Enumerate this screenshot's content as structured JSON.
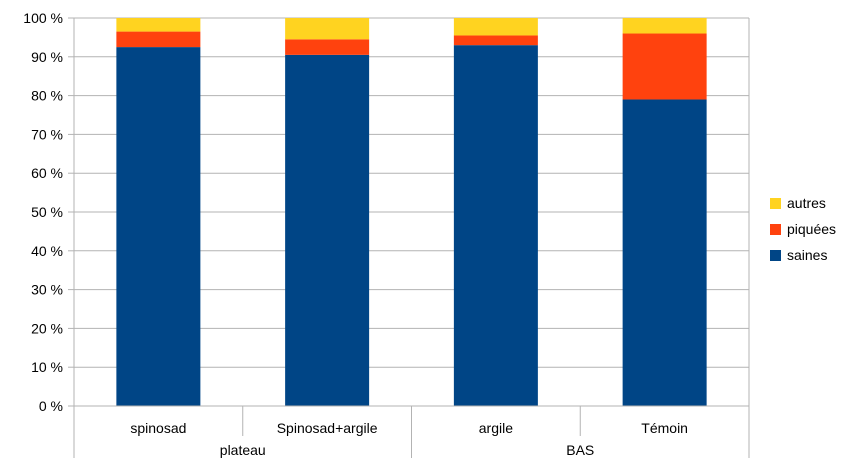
{
  "chart_data": {
    "type": "bar",
    "stacked": true,
    "percent": true,
    "title": "",
    "xlabel": "",
    "ylabel": "",
    "ylim": [
      0,
      100
    ],
    "yticks": [
      "0 %",
      "10 %",
      "20 %",
      "30 %",
      "40 %",
      "50 %",
      "60 %",
      "70 %",
      "80 %",
      "90 %",
      "100 %"
    ],
    "categories": [
      "spinosad",
      "Spinosad+argile",
      "argile",
      "Témoin"
    ],
    "groups": [
      {
        "label": "plateau",
        "categories": [
          "spinosad",
          "Spinosad+argile"
        ]
      },
      {
        "label": "BAS",
        "categories": [
          "argile",
          "Témoin"
        ]
      }
    ],
    "series": [
      {
        "name": "saines",
        "color": "#004586",
        "values": [
          92.5,
          90.5,
          93,
          79
        ]
      },
      {
        "name": "piquées",
        "color": "#ff420e",
        "values": [
          4,
          4,
          2.5,
          17
        ]
      },
      {
        "name": "autres",
        "color": "#ffd320",
        "values": [
          3.5,
          5.5,
          4.5,
          4
        ]
      }
    ],
    "legend": {
      "position": "right",
      "order": [
        "autres",
        "piquées",
        "saines"
      ]
    },
    "grid": true
  }
}
